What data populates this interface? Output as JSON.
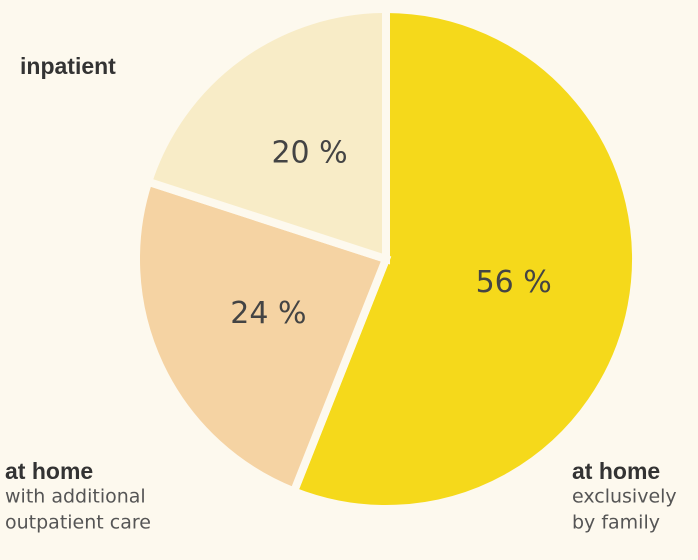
{
  "chart_data": {
    "type": "pie",
    "categories": [
      "at home",
      "at home",
      "inpatient"
    ],
    "category_lines": [
      [
        "exclusively",
        "by family"
      ],
      [
        "with additional",
        "outpatient care"
      ]
    ],
    "values": [
      56,
      24,
      20
    ],
    "value_labels": [
      "56 %",
      "24 %",
      "20 %"
    ],
    "colors": [
      "#f5d91b",
      "#f5d3a3",
      "#f8ecc7"
    ]
  }
}
